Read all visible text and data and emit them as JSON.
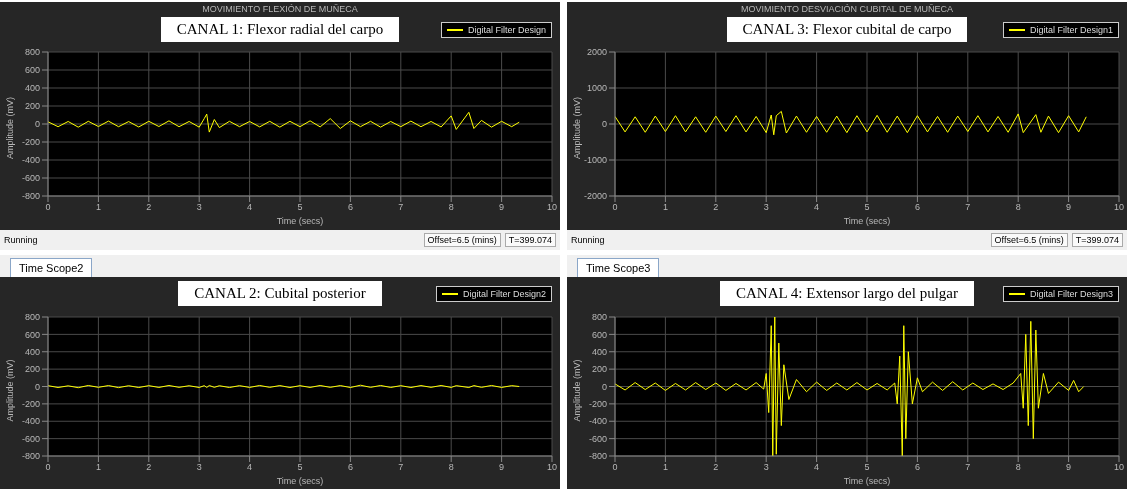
{
  "chart_data": [
    {
      "type": "line",
      "title": "MOVIMIENTO FLEXIÓN DE MUÑECA",
      "xlabel": "Time (secs)",
      "ylabel": "Amplitude (mV)",
      "annotations": [
        "CANAL 1: Flexor radial del carpo",
        "Running",
        "Offset=6.5 (mins)",
        "T=399.074"
      ],
      "x": [
        0,
        0.2,
        0.4,
        0.6,
        0.8,
        1,
        1.2,
        1.4,
        1.6,
        1.8,
        2,
        2.2,
        2.4,
        2.6,
        2.8,
        3,
        3.1,
        3.15,
        3.2,
        3.3,
        3.4,
        3.6,
        3.8,
        4,
        4.2,
        4.4,
        4.6,
        4.8,
        5,
        5.2,
        5.4,
        5.6,
        5.8,
        6,
        6.2,
        6.4,
        6.6,
        6.8,
        7,
        7.2,
        7.4,
        7.6,
        7.8,
        8,
        8.1,
        8.35,
        8.45,
        8.6,
        8.8,
        9,
        9.2,
        9.35
      ],
      "series": [
        {
          "name": "Digital Filter Design",
          "color": "#ffff00",
          "values": [
            25,
            -30,
            28,
            -35,
            30,
            -28,
            32,
            -30,
            27,
            -33,
            30,
            -28,
            35,
            -30,
            28,
            -35,
            60,
            110,
            -90,
            50,
            -40,
            30,
            -30,
            28,
            -32,
            30,
            -35,
            30,
            -30,
            35,
            -32,
            60,
            -50,
            35,
            -30,
            30,
            -35,
            28,
            -30,
            32,
            -30,
            28,
            -33,
            90,
            -60,
            130,
            -50,
            40,
            -35,
            30,
            -30,
            20
          ]
        }
      ],
      "xlim": [
        0,
        10
      ],
      "xticks": [
        0,
        1,
        2,
        3,
        4,
        5,
        6,
        7,
        8,
        9,
        10
      ],
      "ylim": [
        -800,
        800
      ],
      "yticks": [
        -800,
        -600,
        -400,
        -200,
        0,
        200,
        400,
        600,
        800
      ],
      "grid": true,
      "legend": "top right"
    },
    {
      "type": "line",
      "title": "MOVIMIENTO DESVIACIÓN CUBITAL DE MUÑECA",
      "xlabel": "Time (secs)",
      "ylabel": "Amplitude (mV)",
      "annotations": [
        "CANAL 3: Flexor cubital de carpo",
        "Running",
        "Offset=6.5 (mins)",
        "T=399.074"
      ],
      "x": [
        0,
        0.2,
        0.4,
        0.6,
        0.8,
        1,
        1.2,
        1.4,
        1.6,
        1.8,
        2,
        2.2,
        2.4,
        2.6,
        2.8,
        3,
        3.1,
        3.15,
        3.2,
        3.3,
        3.4,
        3.6,
        3.8,
        4,
        4.2,
        4.4,
        4.6,
        4.8,
        5,
        5.2,
        5.4,
        5.6,
        5.8,
        6,
        6.2,
        6.4,
        6.6,
        6.8,
        7,
        7.2,
        7.4,
        7.6,
        7.8,
        8,
        8.1,
        8.35,
        8.45,
        8.6,
        8.8,
        9,
        9.2,
        9.35
      ],
      "series": [
        {
          "name": "Digital Filter Design1",
          "color": "#ffff00",
          "values": [
            210,
            -220,
            200,
            -230,
            220,
            -210,
            230,
            -220,
            200,
            -230,
            220,
            -210,
            230,
            -220,
            210,
            -240,
            250,
            -300,
            230,
            350,
            -250,
            220,
            -230,
            210,
            -230,
            220,
            -240,
            230,
            -220,
            240,
            -230,
            220,
            -240,
            230,
            -220,
            210,
            -230,
            220,
            -210,
            230,
            -220,
            210,
            -230,
            280,
            -240,
            260,
            -230,
            220,
            -240,
            230,
            -220,
            200
          ]
        }
      ],
      "xlim": [
        0,
        10
      ],
      "xticks": [
        0,
        1,
        2,
        3,
        4,
        5,
        6,
        7,
        8,
        9,
        10
      ],
      "ylim": [
        -2000,
        2000
      ],
      "yticks": [
        -2000,
        -1000,
        0,
        1000,
        2000
      ],
      "grid": true,
      "legend": "top right"
    },
    {
      "type": "line",
      "subtitle": "Time Scope2",
      "xlabel": "Time (secs)",
      "ylabel": "Amplitude (mV)",
      "annotations": [
        "CANAL 2: Cubital posterior"
      ],
      "x": [
        0,
        0.2,
        0.4,
        0.6,
        0.8,
        1,
        1.2,
        1.4,
        1.6,
        1.8,
        2,
        2.2,
        2.4,
        2.6,
        2.8,
        3,
        3.1,
        3.15,
        3.2,
        3.3,
        3.4,
        3.6,
        3.8,
        4,
        4.2,
        4.4,
        4.6,
        4.8,
        5,
        5.2,
        5.4,
        5.6,
        5.8,
        6,
        6.2,
        6.4,
        6.6,
        6.8,
        7,
        7.2,
        7.4,
        7.6,
        7.8,
        8,
        8.1,
        8.35,
        8.45,
        8.6,
        8.8,
        9,
        9.2,
        9.35
      ],
      "series": [
        {
          "name": "Digital Filter Design2",
          "color": "#ffff00",
          "values": [
            10,
            -12,
            8,
            -14,
            12,
            -10,
            11,
            -13,
            9,
            -12,
            10,
            -11,
            12,
            -10,
            9,
            -12,
            10,
            -11,
            12,
            -10,
            9,
            -12,
            10,
            -11,
            12,
            -10,
            11,
            -12,
            10,
            -11,
            12,
            -10,
            11,
            -12,
            15,
            -10,
            12,
            -11,
            10,
            -12,
            11,
            -10,
            12,
            -11,
            10,
            -12,
            11,
            -10,
            12,
            -11,
            10,
            0
          ]
        }
      ],
      "xlim": [
        0,
        10
      ],
      "xticks": [
        0,
        1,
        2,
        3,
        4,
        5,
        6,
        7,
        8,
        9,
        10
      ],
      "ylim": [
        -800,
        800
      ],
      "yticks": [
        -800,
        -600,
        -400,
        -200,
        0,
        200,
        400,
        600,
        800
      ],
      "grid": true,
      "legend": "top right"
    },
    {
      "type": "line",
      "subtitle": "Time Scope3",
      "xlabel": "Time (secs)",
      "ylabel": "Amplitude (mV)",
      "annotations": [
        "CANAL 4: Extensor largo del pulgar"
      ],
      "x": [
        0,
        0.2,
        0.4,
        0.6,
        0.8,
        1,
        1.2,
        1.4,
        1.6,
        1.8,
        2,
        2.2,
        2.4,
        2.6,
        2.8,
        2.95,
        3,
        3.05,
        3.1,
        3.13,
        3.17,
        3.2,
        3.25,
        3.3,
        3.35,
        3.45,
        3.6,
        3.8,
        4,
        4.2,
        4.4,
        4.6,
        4.8,
        5,
        5.2,
        5.4,
        5.55,
        5.6,
        5.65,
        5.7,
        5.73,
        5.77,
        5.82,
        5.9,
        6,
        6.1,
        6.3,
        6.5,
        6.7,
        6.9,
        7.1,
        7.3,
        7.5,
        7.7,
        7.9,
        8.05,
        8.1,
        8.15,
        8.2,
        8.25,
        8.3,
        8.35,
        8.4,
        8.5,
        8.6,
        8.8,
        9,
        9.1,
        9.2,
        9.3
      ],
      "series": [
        {
          "name": "Digital Filter Design3",
          "color": "#ffff00",
          "values": [
            30,
            -40,
            45,
            -35,
            40,
            -45,
            35,
            -40,
            45,
            -35,
            40,
            -45,
            35,
            -40,
            45,
            -30,
            150,
            -300,
            700,
            -800,
            800,
            -780,
            500,
            -450,
            250,
            -150,
            80,
            -60,
            50,
            -45,
            40,
            -40,
            45,
            -40,
            35,
            -40,
            40,
            -200,
            350,
            -800,
            700,
            -600,
            400,
            -200,
            100,
            -60,
            50,
            -45,
            55,
            -40,
            40,
            -35,
            30,
            -35,
            40,
            150,
            -250,
            600,
            -450,
            750,
            -600,
            650,
            -250,
            150,
            -80,
            50,
            -45,
            70,
            -60,
            0
          ]
        }
      ],
      "xlim": [
        0,
        10
      ],
      "xticks": [
        0,
        1,
        2,
        3,
        4,
        5,
        6,
        7,
        8,
        9,
        10
      ],
      "ylim": [
        -800,
        800
      ],
      "yticks": [
        -800,
        -600,
        -400,
        -200,
        0,
        200,
        400,
        600,
        800
      ],
      "grid": true,
      "legend": "top right"
    }
  ]
}
